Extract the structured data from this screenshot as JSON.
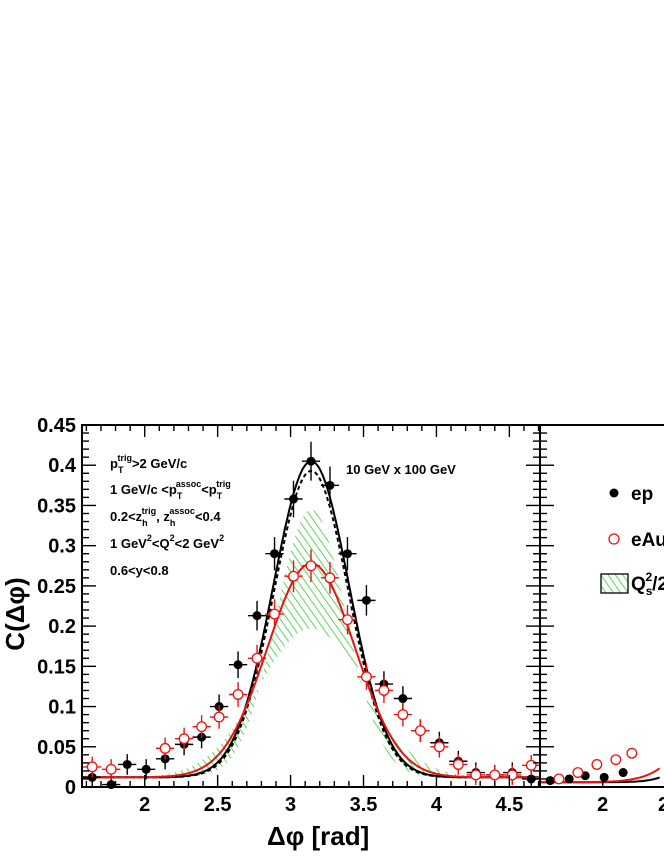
{
  "chart_data": {
    "type": "scatter",
    "xlabel": "Δφ [rad]",
    "ylabel": "C(Δφ)",
    "xlim": [
      1.57,
      4.71
    ],
    "ylim": [
      0,
      0.45
    ],
    "x_ticks": [
      "2",
      "2.5",
      "3",
      "3.5",
      "4",
      "4.5"
    ],
    "y_ticks": [
      "0",
      "0.05",
      "0.1",
      "0.15",
      "0.2",
      "0.25",
      "0.3",
      "0.35",
      "0.4",
      "0.45"
    ],
    "right_panel_x_ticks": [
      "2",
      "2"
    ],
    "energy_label": "10 GeV x 100 GeV",
    "cuts": [
      {
        "main": "p",
        "sub": "T",
        "sup": "trig",
        "rest": ">2 GeV/c"
      },
      {
        "text": "1 GeV/c <p",
        "sub1": "T",
        "sup1": "assoc",
        "mid": "<p",
        "sub2": "T",
        "sup2": "trig"
      },
      {
        "text": "0.2<z",
        "sub1": "h",
        "sup1": "trig",
        "mid": ", z",
        "sub2": "h",
        "sup2": "assoc",
        "rest": "<0.4"
      },
      {
        "text": "1 GeV",
        "sup1": "2",
        "mid": "<Q",
        "sup2": "2",
        "rest": "<2 GeV",
        "sup3": "2"
      },
      {
        "text": "0.6<y<0.8"
      }
    ],
    "legend": {
      "ep": "ep",
      "eau": "eAu",
      "band_main": "Q",
      "band_sub": "s",
      "band_sup": "2",
      "band_rest": "/2"
    },
    "series": [
      {
        "name": "ep",
        "marker": "filled-circle",
        "color": "#000000",
        "x": [
          1.64,
          1.77,
          1.88,
          2.01,
          2.14,
          2.27,
          2.39,
          2.51,
          2.64,
          2.77,
          2.89,
          3.02,
          3.14,
          3.27,
          3.39,
          3.52,
          3.64,
          3.77,
          3.89,
          4.02,
          4.15,
          4.27,
          4.4,
          4.52,
          4.65
        ],
        "y": [
          0.012,
          0.003,
          0.028,
          0.022,
          0.035,
          0.053,
          0.062,
          0.1,
          0.152,
          0.213,
          0.29,
          0.358,
          0.405,
          0.375,
          0.29,
          0.232,
          0.128,
          0.11,
          0.07,
          0.055,
          0.032,
          0.018,
          0.015,
          0.018,
          0.01
        ]
      },
      {
        "name": "eAu",
        "marker": "open-circle",
        "color": "#ee1111",
        "x": [
          1.64,
          1.77,
          2.14,
          2.27,
          2.39,
          2.51,
          2.64,
          2.77,
          2.89,
          3.02,
          3.14,
          3.27,
          3.39,
          3.52,
          3.64,
          3.77,
          3.89,
          4.02,
          4.15,
          4.27,
          4.4,
          4.52,
          4.65
        ],
        "y": [
          0.025,
          0.022,
          0.048,
          0.06,
          0.075,
          0.087,
          0.115,
          0.16,
          0.215,
          0.262,
          0.275,
          0.26,
          0.208,
          0.137,
          0.12,
          0.09,
          0.07,
          0.05,
          0.028,
          0.015,
          0.015,
          0.015,
          0.027
        ]
      }
    ],
    "curves": [
      {
        "name": "ep fit",
        "style": "solid",
        "color": "#000000",
        "base": 0.012,
        "amp": 0.393,
        "sigma": 0.26
      },
      {
        "name": "ep fit 2",
        "style": "dashed",
        "color": "#000000",
        "base": 0.012,
        "amp": 0.381,
        "sigma": 0.255
      },
      {
        "name": "eAu fit",
        "style": "solid",
        "color": "#ee1111",
        "base": 0.012,
        "amp": 0.266,
        "sigma": 0.3
      }
    ],
    "band": {
      "color": "#33cc33",
      "base": 0.012,
      "amp_upper": 0.333,
      "amp_lower": 0.185,
      "sigma_upper": 0.24,
      "sigma_lower": 0.36
    },
    "grid": false,
    "legend_position": "right"
  }
}
